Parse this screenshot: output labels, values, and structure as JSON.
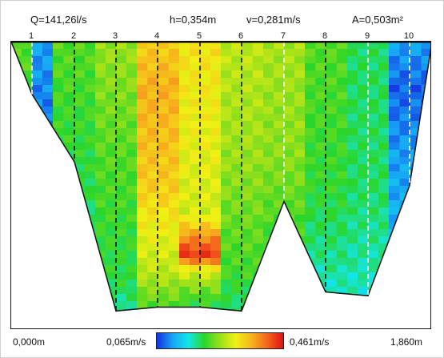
{
  "header": {
    "discharge": "Q=141,26l/s",
    "depth": "h=0,354m",
    "velocity": "v=0,281m/s",
    "area": "A=0,503m²"
  },
  "verticals": [
    {
      "label": "1",
      "bottom_depth": 0.069
    },
    {
      "label": "2",
      "bottom_depth": 0.158
    },
    {
      "label": "3",
      "bottom_depth": 0.354
    },
    {
      "label": "4",
      "bottom_depth": 0.349
    },
    {
      "label": "5",
      "bottom_depth": 0.349
    },
    {
      "label": "6",
      "bottom_depth": 0.354
    },
    {
      "label": "7",
      "bottom_depth": 0.21
    },
    {
      "label": "8",
      "bottom_depth": 0.329
    },
    {
      "label": "9",
      "bottom_depth": 0.334
    },
    {
      "label": "10",
      "bottom_depth": 0.189
    }
  ],
  "scale": {
    "min_label": "0,065m/s",
    "max_label": "0,461m/s",
    "min_value": 0.065,
    "max_value": 0.461,
    "colors": [
      "#1530e0",
      "#16a6f5",
      "#13e6e6",
      "#2ad62a",
      "#9be01a",
      "#f1f014",
      "#f7b21d",
      "#f5641c",
      "#e01111"
    ]
  },
  "width_axis": {
    "start_label": "0,000m",
    "end_label": "1,860m",
    "total_width": 1.86
  },
  "profile": {
    "bed_color": "#ffffff",
    "surface_line_color": "#111111"
  }
}
